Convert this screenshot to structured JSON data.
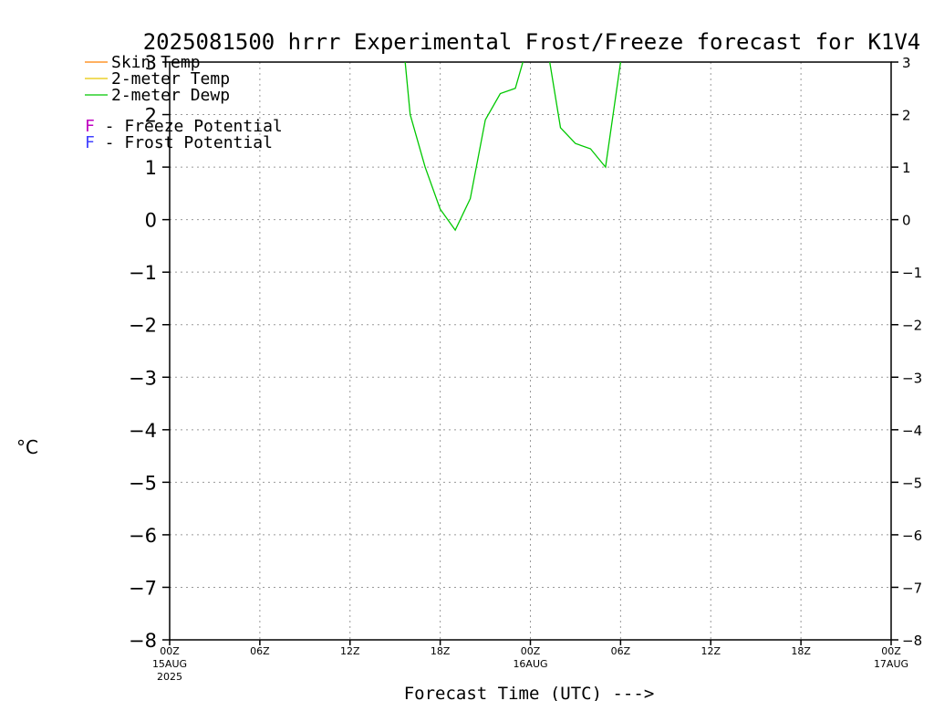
{
  "chart_data": {
    "type": "line",
    "title": "2025081500 hrrr Experimental Frost/Freeze forecast for K1V4",
    "xlabel": "Forecast Time (UTC) --->",
    "ylabel": "°C",
    "ylim": [
      -8,
      3
    ],
    "yticks": [
      3,
      2,
      1,
      0,
      -1,
      -2,
      -3,
      -4,
      -5,
      -6,
      -7,
      -8
    ],
    "xlim": [
      0,
      48
    ],
    "xticks": [
      {
        "hour": 0,
        "label": "00Z",
        "sub1": "15AUG",
        "sub2": "2025"
      },
      {
        "hour": 6,
        "label": "06Z",
        "sub1": "",
        "sub2": ""
      },
      {
        "hour": 12,
        "label": "12Z",
        "sub1": "",
        "sub2": ""
      },
      {
        "hour": 18,
        "label": "18Z",
        "sub1": "",
        "sub2": ""
      },
      {
        "hour": 24,
        "label": "00Z",
        "sub1": "16AUG",
        "sub2": ""
      },
      {
        "hour": 30,
        "label": "06Z",
        "sub1": "",
        "sub2": ""
      },
      {
        "hour": 36,
        "label": "12Z",
        "sub1": "",
        "sub2": ""
      },
      {
        "hour": 42,
        "label": "18Z",
        "sub1": "",
        "sub2": ""
      },
      {
        "hour": 48,
        "label": "00Z",
        "sub1": "17AUG",
        "sub2": ""
      }
    ],
    "grid": true,
    "legend_position": "top-left",
    "legend": [
      {
        "name": "Skin Temp",
        "color": "#ff8000"
      },
      {
        "name": "2-meter Temp",
        "color": "#e8c800"
      },
      {
        "name": "2-meter Dewp",
        "color": "#00c800"
      }
    ],
    "potential_legend": [
      {
        "symbol": "F",
        "text": " - Freeze Potential",
        "color": "#c000c0"
      },
      {
        "symbol": "F",
        "text": " - Frost Potential",
        "color": "#4040ff"
      }
    ],
    "series": [
      {
        "name": "2-meter Dewp",
        "color": "#00c800",
        "x": [
          15,
          16,
          17,
          18,
          19,
          20,
          21,
          22,
          23,
          24,
          25,
          26,
          27,
          28,
          29,
          30,
          31
        ],
        "y": [
          5.0,
          2.0,
          1.0,
          0.2,
          -0.2,
          0.4,
          1.9,
          2.4,
          2.5,
          3.5,
          3.5,
          1.75,
          1.45,
          1.35,
          1.0,
          3.0,
          5.0
        ]
      }
    ]
  }
}
